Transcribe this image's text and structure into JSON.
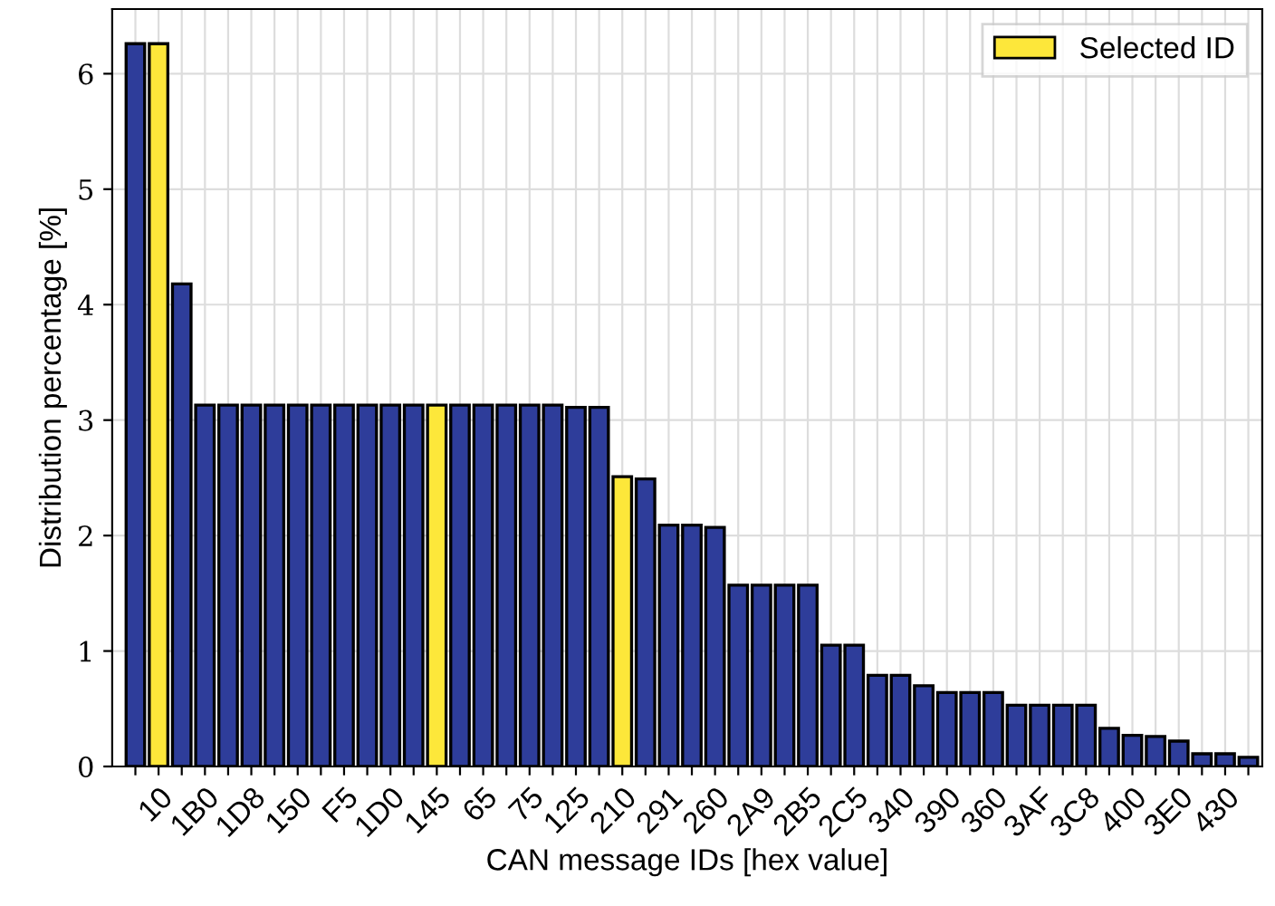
{
  "chart_data": {
    "type": "bar",
    "xlabel": "CAN message IDs [hex value]",
    "ylabel": "Distribution percentage [%]",
    "categories": [
      null,
      "10",
      null,
      "1B0",
      null,
      "1D8",
      null,
      "150",
      null,
      "F5",
      null,
      "1D0",
      null,
      "145",
      null,
      "65",
      null,
      "75",
      null,
      "125",
      null,
      "210",
      null,
      "291",
      null,
      "260",
      null,
      "2A9",
      null,
      "2B5",
      null,
      "2C5",
      null,
      "340",
      null,
      "390",
      null,
      "360",
      null,
      "3AF",
      null,
      "3C8",
      null,
      "400",
      null,
      "3E0",
      null,
      "430",
      null
    ],
    "series": [
      {
        "color": "#2e3d9a",
        "values": [
          6.26,
          null,
          4.18,
          3.13,
          3.13,
          3.13,
          3.13,
          3.13,
          3.13,
          3.13,
          3.13,
          3.13,
          3.13,
          null,
          3.13,
          3.13,
          3.13,
          3.13,
          3.13,
          3.11,
          3.11,
          null,
          2.49,
          2.09,
          2.09,
          2.07,
          1.57,
          1.57,
          1.57,
          1.57,
          1.05,
          1.05,
          0.79,
          0.79,
          0.7,
          0.64,
          0.64,
          0.64,
          0.53,
          0.53,
          0.53,
          0.53,
          0.33,
          0.27,
          0.26,
          0.22,
          0.11,
          0.11,
          0.08
        ]
      },
      {
        "name": "Selected ID",
        "color": "#fde73a",
        "values": [
          null,
          6.26,
          null,
          null,
          null,
          null,
          null,
          null,
          null,
          null,
          null,
          null,
          null,
          3.13,
          null,
          null,
          null,
          null,
          null,
          null,
          null,
          2.51,
          null,
          null,
          null,
          null,
          null,
          null,
          null,
          null,
          null,
          null,
          null,
          null,
          null,
          null,
          null,
          null,
          null,
          null,
          null,
          null,
          null,
          null,
          null,
          null,
          null,
          null,
          null
        ]
      }
    ],
    "ylim": [
      0,
      6.56
    ],
    "yticks": [
      0,
      1,
      2,
      3,
      4,
      5,
      6
    ],
    "grid": true,
    "legend": "top right"
  }
}
